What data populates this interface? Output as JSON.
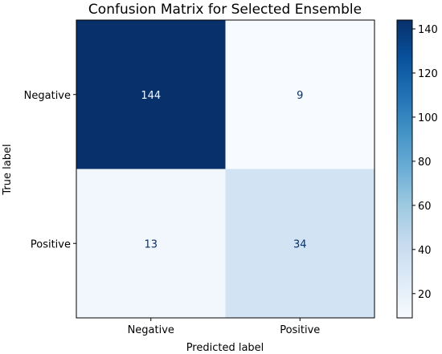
{
  "chart_data": {
    "type": "heatmap",
    "title": "Confusion Matrix for Selected Ensemble",
    "xlabel": "Predicted label",
    "ylabel": "True label",
    "x_categories": [
      "Negative",
      "Positive"
    ],
    "y_categories": [
      "Negative",
      "Positive"
    ],
    "matrix": [
      [
        144,
        9
      ],
      [
        13,
        34
      ]
    ],
    "colormap": "Blues",
    "color_range": [
      9,
      144
    ],
    "colorbar_ticks": [
      20,
      40,
      60,
      80,
      100,
      120,
      140
    ],
    "grid": false,
    "colorbar_location": "right"
  }
}
